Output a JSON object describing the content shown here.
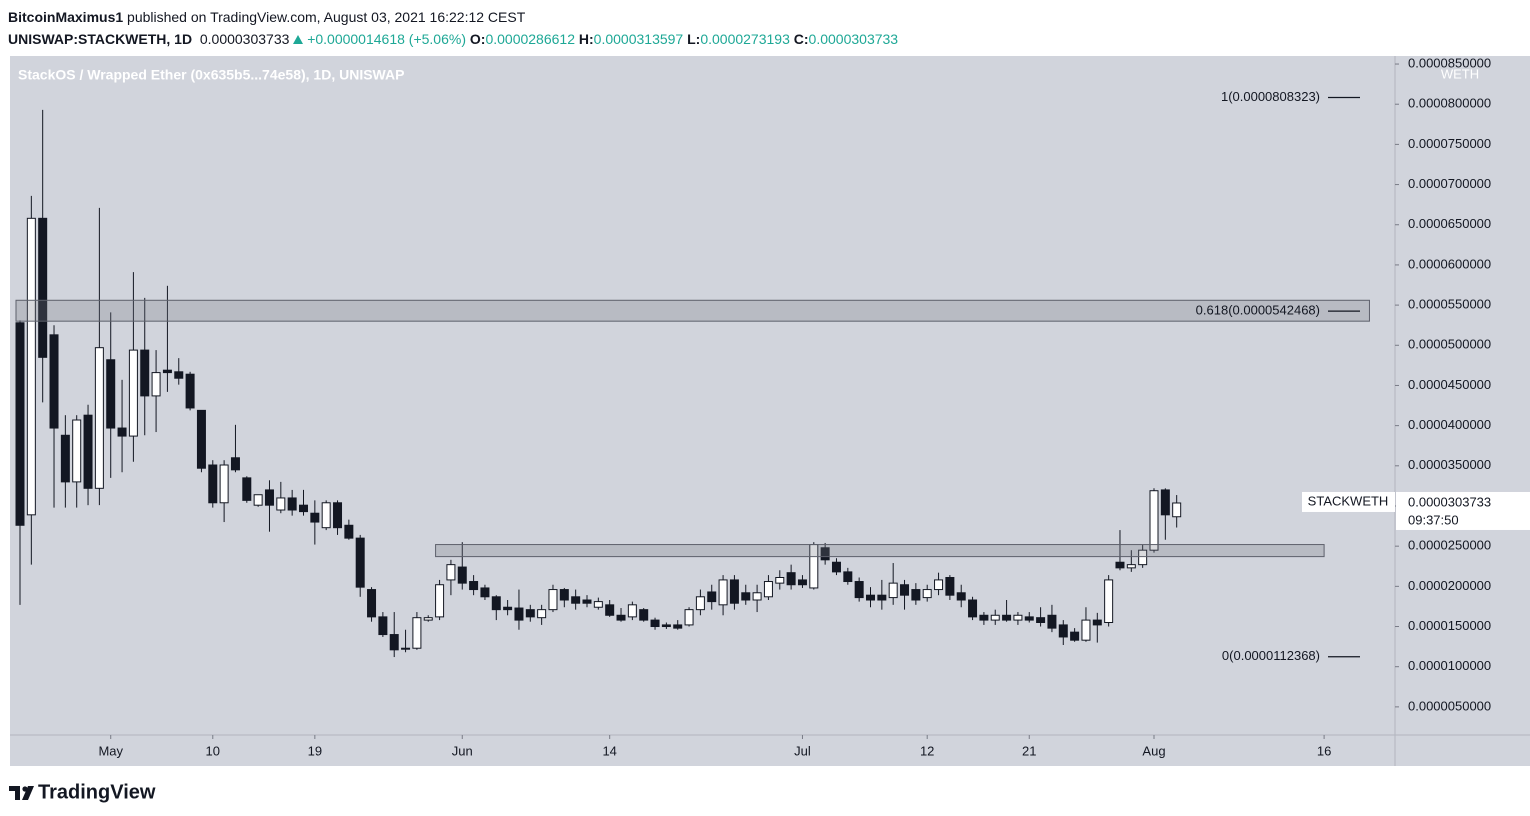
{
  "header": {
    "author": "BitcoinMaximus1",
    "published": "published on TradingView.com, August 03, 2021 16:22:12 CEST",
    "symbol_interval": "UNISWAP:STACKWETH, 1D",
    "change": "+0.0000014618",
    "change_pct": "(+5.06%)",
    "ohlc_labels": [
      "O:",
      "H:",
      "L:",
      "C:"
    ]
  },
  "footer": {
    "brand": "TradingView"
  },
  "chart_data": {
    "type": "candlestick",
    "title": "StackOS / Wrapped Ether (0x635b5...74e58), 1D, UNISWAP",
    "symbol": "STACKWETH",
    "axis_unit": "WETH",
    "countdown": "09:37:50",
    "up_color": "#ffffff",
    "down_color": "#131722",
    "background": "#d1d4dc",
    "grid": false,
    "x": [
      "2021-04-23",
      "2021-04-24",
      "2021-04-25",
      "2021-04-26",
      "2021-04-27",
      "2021-04-28",
      "2021-04-29",
      "2021-04-30",
      "2021-05-01",
      "2021-05-02",
      "2021-05-03",
      "2021-05-04",
      "2021-05-05",
      "2021-05-06",
      "2021-05-07",
      "2021-05-08",
      "2021-05-09",
      "2021-05-10",
      "2021-05-11",
      "2021-05-12",
      "2021-05-13",
      "2021-05-14",
      "2021-05-15",
      "2021-05-16",
      "2021-05-17",
      "2021-05-18",
      "2021-05-19",
      "2021-05-20",
      "2021-05-21",
      "2021-05-22",
      "2021-05-23",
      "2021-05-24",
      "2021-05-25",
      "2021-05-26",
      "2021-05-27",
      "2021-05-28",
      "2021-05-29",
      "2021-05-30",
      "2021-05-31",
      "2021-06-01",
      "2021-06-02",
      "2021-06-03",
      "2021-06-04",
      "2021-06-05",
      "2021-06-06",
      "2021-06-07",
      "2021-06-08",
      "2021-06-09",
      "2021-06-10",
      "2021-06-11",
      "2021-06-12",
      "2021-06-13",
      "2021-06-14",
      "2021-06-15",
      "2021-06-16",
      "2021-06-17",
      "2021-06-18",
      "2021-06-19",
      "2021-06-20",
      "2021-06-21",
      "2021-06-22",
      "2021-06-23",
      "2021-06-24",
      "2021-06-25",
      "2021-06-26",
      "2021-06-27",
      "2021-06-28",
      "2021-06-29",
      "2021-06-30",
      "2021-07-01",
      "2021-07-02",
      "2021-07-03",
      "2021-07-04",
      "2021-07-05",
      "2021-07-06",
      "2021-07-07",
      "2021-07-08",
      "2021-07-09",
      "2021-07-10",
      "2021-07-11",
      "2021-07-12",
      "2021-07-13",
      "2021-07-14",
      "2021-07-15",
      "2021-07-16",
      "2021-07-17",
      "2021-07-18",
      "2021-07-19",
      "2021-07-20",
      "2021-07-21",
      "2021-07-22",
      "2021-07-23",
      "2021-07-24",
      "2021-07-25",
      "2021-07-26",
      "2021-07-27",
      "2021-07-28",
      "2021-07-29",
      "2021-07-30",
      "2021-07-31",
      "2021-08-01",
      "2021-08-02",
      "2021-08-03"
    ],
    "open": [
      5.28e-05,
      2.89e-05,
      6.58e-05,
      5.13e-05,
      3.88e-05,
      3.3e-05,
      4.13e-05,
      3.22e-05,
      4.82e-05,
      3.97e-05,
      3.87e-05,
      4.94e-05,
      4.37e-05,
      4.69e-05,
      4.67e-05,
      4.64e-05,
      4.19e-05,
      3.51e-05,
      3.04e-05,
      3.6e-05,
      3.35e-05,
      3.01e-05,
      3.2e-05,
      2.95e-05,
      3.1e-05,
      3.01e-05,
      2.91e-05,
      2.73e-05,
      3.04e-05,
      2.76e-05,
      2.6e-05,
      1.96e-05,
      1.62e-05,
      1.4e-05,
      1.23e-05,
      1.23e-05,
      1.58e-05,
      1.62e-05,
      2.08e-05,
      2.24e-05,
      2.06e-05,
      1.98e-05,
      1.87e-05,
      1.74e-05,
      1.73e-05,
      1.71e-05,
      1.61e-05,
      1.71e-05,
      1.96e-05,
      1.87e-05,
      1.83e-05,
      1.74e-05,
      1.77e-05,
      1.64e-05,
      1.62e-05,
      1.71e-05,
      1.58e-05,
      1.52e-05,
      1.52e-05,
      1.52e-05,
      1.71e-05,
      1.93e-05,
      1.77e-05,
      2.08e-05,
      1.92e-05,
      1.83e-05,
      1.87e-05,
      2.04e-05,
      2.17e-05,
      2.08e-05,
      1.98e-05,
      2.48e-05,
      2.3e-05,
      2.18e-05,
      2.06e-05,
      1.89e-05,
      1.89e-05,
      1.86e-05,
      2.02e-05,
      1.96e-05,
      1.86e-05,
      1.96e-05,
      2.11e-05,
      1.92e-05,
      1.83e-05,
      1.64e-05,
      1.58e-05,
      1.64e-05,
      1.58e-05,
      1.62e-05,
      1.61e-05,
      1.64e-05,
      1.52e-05,
      1.43e-05,
      1.33e-05,
      1.58e-05,
      1.55e-05,
      2.3e-05,
      2.23e-05,
      2.27e-05,
      2.45e-05,
      3.2e-05,
      2.86612e-05
    ],
    "high": [
      5.31e-05,
      6.86e-05,
      7.93e-05,
      5.25e-05,
      4.13e-05,
      4.13e-05,
      4.26e-05,
      6.71e-05,
      5.41e-05,
      4.57e-05,
      5.91e-05,
      5.59e-05,
      4.94e-05,
      5.74e-05,
      4.84e-05,
      4.67e-05,
      4.19e-05,
      3.57e-05,
      3.57e-05,
      4.01e-05,
      3.37e-05,
      3.14e-05,
      3.32e-05,
      3.3e-05,
      3.2e-05,
      3.2e-05,
      3.07e-05,
      3.07e-05,
      3.07e-05,
      2.83e-05,
      2.64e-05,
      1.99e-05,
      1.68e-05,
      1.68e-05,
      1.46e-05,
      1.68e-05,
      1.64e-05,
      2.08e-05,
      2.33e-05,
      2.55e-05,
      2.14e-05,
      2.02e-05,
      1.89e-05,
      1.83e-05,
      1.96e-05,
      1.77e-05,
      1.77e-05,
      2.02e-05,
      1.98e-05,
      1.96e-05,
      1.89e-05,
      1.86e-05,
      1.83e-05,
      1.73e-05,
      1.81e-05,
      1.73e-05,
      1.61e-05,
      1.55e-05,
      1.58e-05,
      1.74e-05,
      1.96e-05,
      2.02e-05,
      2.14e-05,
      2.14e-05,
      2.02e-05,
      2.02e-05,
      2.14e-05,
      2.2e-05,
      2.27e-05,
      2.14e-05,
      2.55e-05,
      2.54e-05,
      2.35e-05,
      2.23e-05,
      2.11e-05,
      1.99e-05,
      2.08e-05,
      2.29e-05,
      2.08e-05,
      2.04e-05,
      2.02e-05,
      2.17e-05,
      2.14e-05,
      2.02e-05,
      1.87e-05,
      1.68e-05,
      1.71e-05,
      1.83e-05,
      1.68e-05,
      1.68e-05,
      1.74e-05,
      1.77e-05,
      1.58e-05,
      1.48e-05,
      1.74e-05,
      1.67e-05,
      2.14e-05,
      2.7e-05,
      2.45e-05,
      2.52e-05,
      3.22e-05,
      3.22e-05,
      3.13597e-05
    ],
    "low": [
      1.77e-05,
      2.27e-05,
      4.29e-05,
      2.98e-05,
      2.98e-05,
      2.98e-05,
      3.01e-05,
      3.01e-05,
      3.35e-05,
      3.42e-05,
      3.55e-05,
      3.88e-05,
      3.92e-05,
      4.42e-05,
      4.51e-05,
      4.19e-05,
      3.42e-05,
      2.98e-05,
      2.8e-05,
      3.42e-05,
      3.04e-05,
      2.99e-05,
      2.68e-05,
      2.91e-05,
      2.88e-05,
      2.88e-05,
      2.52e-05,
      2.7e-05,
      2.64e-05,
      2.58e-05,
      1.87e-05,
      1.56e-05,
      1.37e-05,
      1.12e-05,
      1.18e-05,
      1.21e-05,
      1.56e-05,
      1.58e-05,
      1.89e-05,
      1.96e-05,
      1.89e-05,
      1.83e-05,
      1.58e-05,
      1.64e-05,
      1.46e-05,
      1.56e-05,
      1.52e-05,
      1.68e-05,
      1.74e-05,
      1.71e-05,
      1.74e-05,
      1.71e-05,
      1.62e-05,
      1.56e-05,
      1.58e-05,
      1.56e-05,
      1.46e-05,
      1.47e-05,
      1.46e-05,
      1.5e-05,
      1.64e-05,
      1.71e-05,
      1.64e-05,
      1.71e-05,
      1.77e-05,
      1.68e-05,
      1.83e-05,
      1.96e-05,
      1.96e-05,
      1.98e-05,
      1.96e-05,
      2.27e-05,
      2.14e-05,
      2.02e-05,
      1.81e-05,
      1.74e-05,
      1.71e-05,
      1.77e-05,
      1.71e-05,
      1.77e-05,
      1.81e-05,
      1.89e-05,
      1.83e-05,
      1.74e-05,
      1.58e-05,
      1.52e-05,
      1.52e-05,
      1.56e-05,
      1.52e-05,
      1.55e-05,
      1.5e-05,
      1.43e-05,
      1.27e-05,
      1.31e-05,
      1.31e-05,
      1.3e-05,
      1.5e-05,
      2.2e-05,
      2.18e-05,
      2.23e-05,
      2.42e-05,
      2.58e-05,
      2.73193e-05
    ],
    "close": [
      2.76e-05,
      6.58e-05,
      4.85e-05,
      3.97e-05,
      3.3e-05,
      4.07e-05,
      3.22e-05,
      4.97e-05,
      3.97e-05,
      3.87e-05,
      4.94e-05,
      4.37e-05,
      4.66e-05,
      4.66e-05,
      4.59e-05,
      4.22e-05,
      3.47e-05,
      3.04e-05,
      3.51e-05,
      3.45e-05,
      3.07e-05,
      3.14e-05,
      3.01e-05,
      3.1e-05,
      2.95e-05,
      2.93e-05,
      2.8e-05,
      3.04e-05,
      2.73e-05,
      2.6e-05,
      1.99e-05,
      1.62e-05,
      1.4e-05,
      1.21e-05,
      1.22e-05,
      1.61e-05,
      1.61e-05,
      2.02e-05,
      2.27e-05,
      2.04e-05,
      1.96e-05,
      1.87e-05,
      1.71e-05,
      1.71e-05,
      1.58e-05,
      1.62e-05,
      1.71e-05,
      1.96e-05,
      1.83e-05,
      1.79e-05,
      1.79e-05,
      1.81e-05,
      1.64e-05,
      1.58e-05,
      1.77e-05,
      1.58e-05,
      1.5e-05,
      1.5e-05,
      1.48e-05,
      1.71e-05,
      1.87e-05,
      1.81e-05,
      2.08e-05,
      1.79e-05,
      1.83e-05,
      1.92e-05,
      2.06e-05,
      2.11e-05,
      2.02e-05,
      2.02e-05,
      2.52e-05,
      2.33e-05,
      2.18e-05,
      2.06e-05,
      1.86e-05,
      1.83e-05,
      1.83e-05,
      2.04e-05,
      1.89e-05,
      1.83e-05,
      1.96e-05,
      2.08e-05,
      1.89e-05,
      1.83e-05,
      1.62e-05,
      1.58e-05,
      1.64e-05,
      1.58e-05,
      1.64e-05,
      1.58e-05,
      1.55e-05,
      1.48e-05,
      1.37e-05,
      1.33e-05,
      1.58e-05,
      1.52e-05,
      2.08e-05,
      2.23e-05,
      2.27e-05,
      2.45e-05,
      3.19e-05,
      2.89e-05,
      3.03733e-05
    ],
    "ylim": [
      1.5e-06,
      8.6e-05
    ],
    "yticks": [
      {
        "value": 5e-06,
        "label": "0.0000050000"
      },
      {
        "value": 1e-05,
        "label": "0.0000100000"
      },
      {
        "value": 1.5e-05,
        "label": "0.0000150000"
      },
      {
        "value": 2e-05,
        "label": "0.0000200000"
      },
      {
        "value": 2.5e-05,
        "label": "0.0000250000"
      },
      {
        "value": 3e-05,
        "label": "0.0000300000"
      },
      {
        "value": 3.5e-05,
        "label": "0.0000350000"
      },
      {
        "value": 4e-05,
        "label": "0.0000400000"
      },
      {
        "value": 4.5e-05,
        "label": "0.0000450000"
      },
      {
        "value": 5e-05,
        "label": "0.0000500000"
      },
      {
        "value": 5.5e-05,
        "label": "0.0000550000"
      },
      {
        "value": 6e-05,
        "label": "0.0000600000"
      },
      {
        "value": 6.5e-05,
        "label": "0.0000650000"
      },
      {
        "value": 7e-05,
        "label": "0.0000700000"
      },
      {
        "value": 7.5e-05,
        "label": "0.0000750000"
      },
      {
        "value": 8e-05,
        "label": "0.0000800000"
      },
      {
        "value": 8.5e-05,
        "label": "0.0000850000"
      }
    ],
    "xticks": [
      {
        "value": "2021-05-01",
        "label": "May"
      },
      {
        "value": "2021-05-10",
        "label": "10"
      },
      {
        "value": "2021-05-19",
        "label": "19"
      },
      {
        "value": "2021-06-01",
        "label": "Jun"
      },
      {
        "value": "2021-06-14",
        "label": "14"
      },
      {
        "value": "2021-07-01",
        "label": "Jul"
      },
      {
        "value": "2021-07-12",
        "label": "12"
      },
      {
        "value": "2021-07-21",
        "label": "21"
      },
      {
        "value": "2021-08-01",
        "label": "Aug"
      },
      {
        "value": "2021-08-16",
        "label": "16"
      }
    ],
    "zones": [
      {
        "from": "2021-04-23",
        "to": "2021-08-20",
        "top": 5.56e-05,
        "bottom": 5.3e-05
      },
      {
        "from": "2021-05-30",
        "to": "2021-08-16",
        "top": 2.52e-05,
        "bottom": 2.37e-05
      }
    ],
    "fib_levels": [
      {
        "value": 8.08323e-05,
        "label": "1(0.0000808323)"
      },
      {
        "value": 5.42468e-05,
        "label": "0.618(0.0000542468)"
      },
      {
        "value": 1.12368e-05,
        "label": "0(0.0000112368)"
      }
    ]
  }
}
